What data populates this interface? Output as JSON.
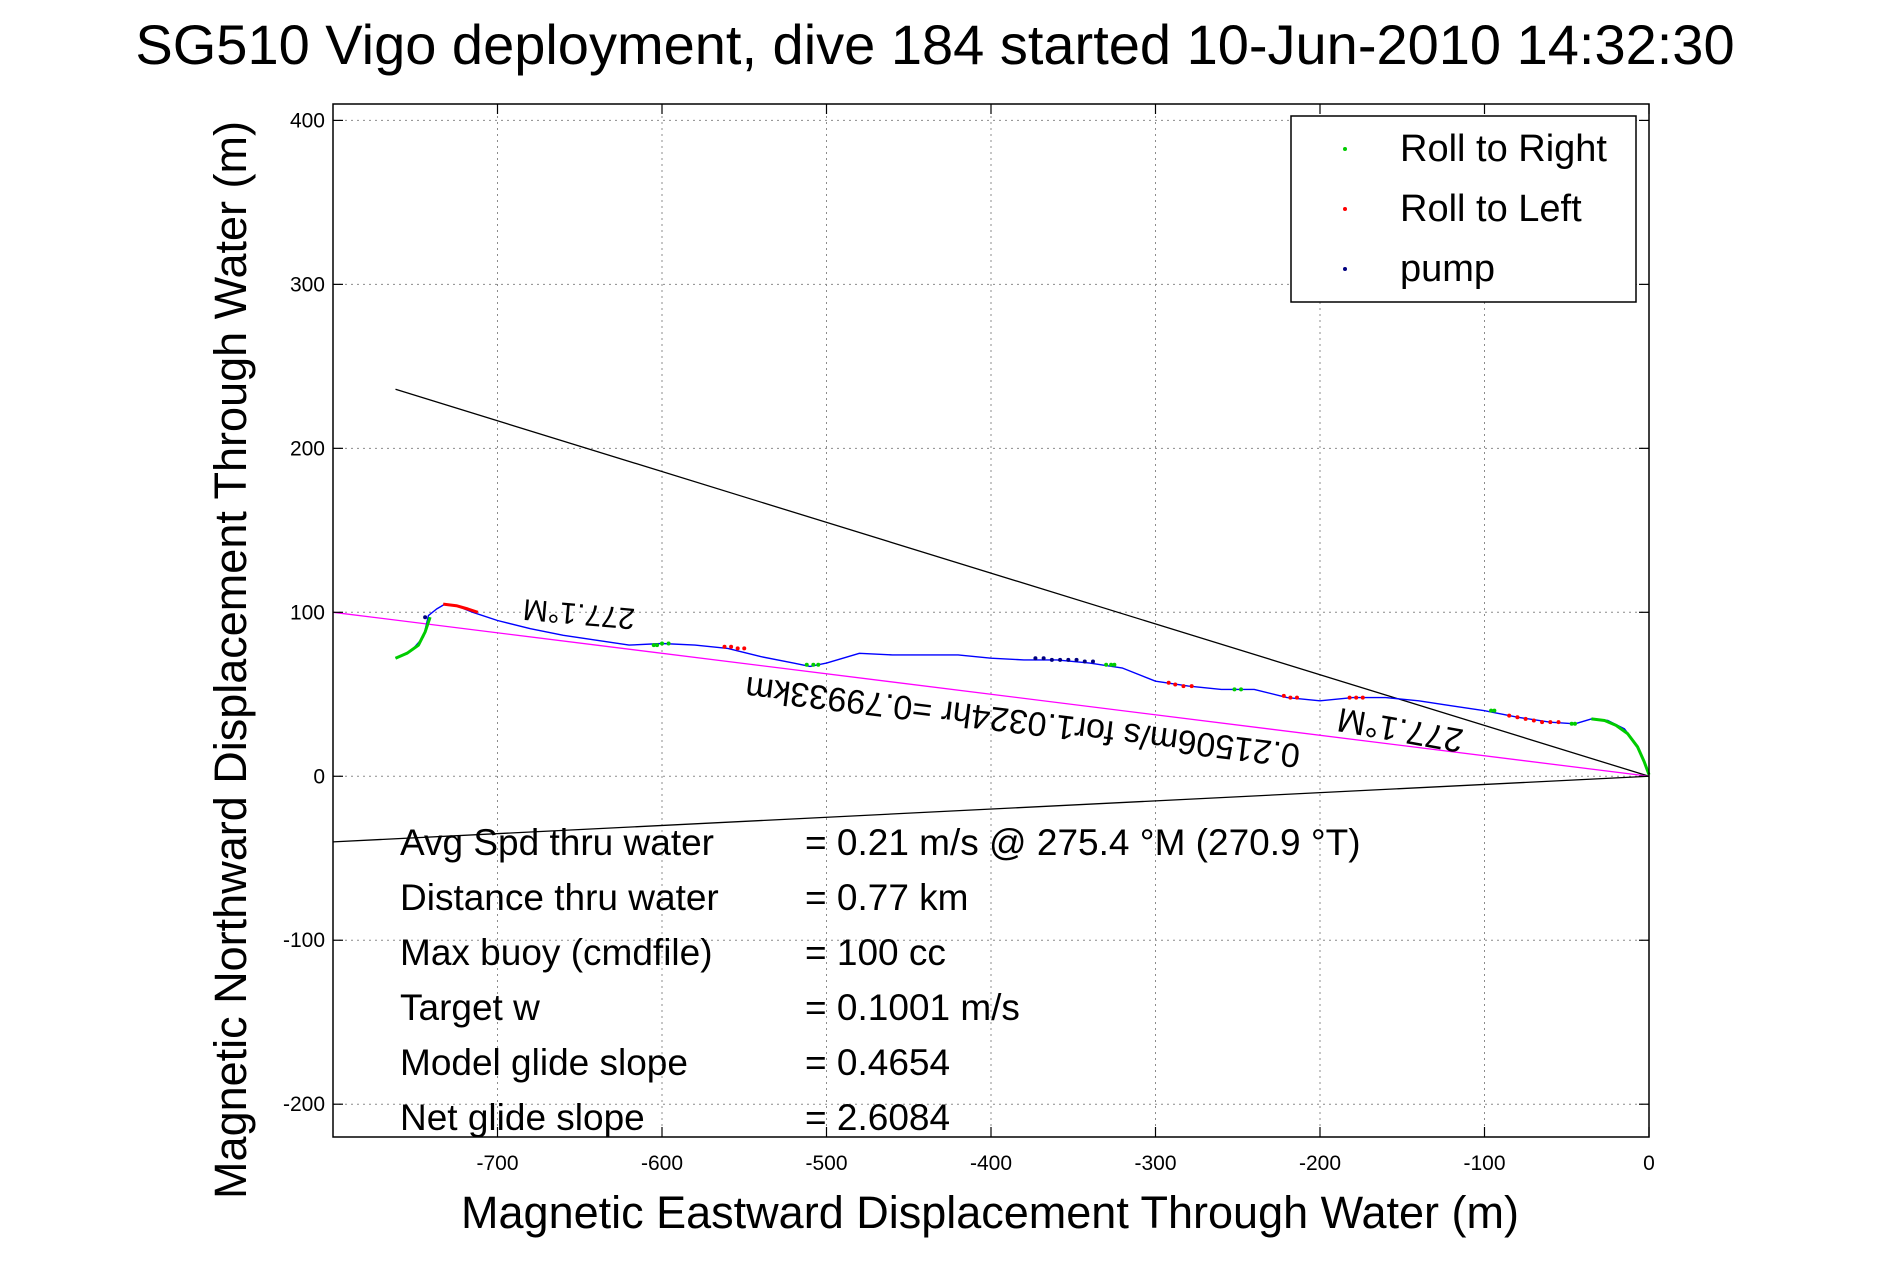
{
  "chart_data": {
    "type": "line",
    "title": "SG510 Vigo deployment, dive 184 started 10-Jun-2010 14:32:30",
    "xlabel": "Magnetic Eastward Displacement Through Water (m)",
    "ylabel": "Magnetic Northward Displacement Through Water (m)",
    "xlim": [
      -800,
      0
    ],
    "ylim": [
      -220,
      410
    ],
    "x_ticks": [
      -700,
      -600,
      -500,
      -400,
      -300,
      -200,
      -100,
      0
    ],
    "y_ticks": [
      -200,
      -100,
      0,
      100,
      200,
      300,
      400
    ],
    "grid": true,
    "legend": {
      "placement": "top-right",
      "entries": [
        {
          "label": "Roll to Right",
          "color": "#00cc00"
        },
        {
          "label": "Roll to Left",
          "color": "#ff0000"
        },
        {
          "label": "pump",
          "color": "#000080"
        }
      ]
    },
    "series": [
      {
        "color": "#0000ff",
        "x": [
          -762,
          -752,
          -745,
          -742,
          -737,
          -732,
          -725,
          -715,
          -700,
          -680,
          -660,
          -640,
          -620,
          -600,
          -580,
          -560,
          -540,
          -520,
          -510,
          -500,
          -490,
          -480,
          -460,
          -440,
          -420,
          -400,
          -380,
          -360,
          -340,
          -320,
          -300,
          -280,
          -260,
          -240,
          -220,
          -200,
          -180,
          -160,
          -140,
          -120,
          -100,
          -80,
          -60,
          -45,
          -35,
          -25,
          -15,
          -8,
          -3,
          0
        ],
        "y": [
          72,
          77,
          85,
          98,
          102,
          105,
          104,
          100,
          95,
          90,
          86,
          83,
          80,
          81,
          80,
          78,
          73,
          69,
          67,
          69,
          72,
          75,
          74,
          74,
          74,
          72,
          71,
          71,
          69,
          66,
          58,
          55,
          53,
          53,
          48,
          46,
          48,
          48,
          46,
          43,
          40,
          36,
          33,
          32,
          35,
          34,
          29,
          20,
          9,
          1
        ]
      },
      {
        "color": "#00cc00",
        "x": [
          -762,
          -755,
          -748,
          -744,
          -741
        ],
        "y": [
          72,
          75,
          80,
          88,
          97
        ]
      },
      {
        "color": "#00cc00",
        "x": [
          -35,
          -27,
          -20,
          -13,
          -7,
          -3,
          0
        ],
        "y": [
          35,
          34,
          31,
          26,
          18,
          9,
          1
        ]
      },
      {
        "color": "#ff0000",
        "x": [
          -733,
          -725,
          -718,
          -712
        ],
        "y": [
          105,
          104,
          102,
          100
        ]
      }
    ],
    "markers": [
      {
        "color": "#00cc00",
        "x": [
          -605,
          -603,
          -600,
          -596,
          -512,
          -508,
          -505,
          -330,
          -327,
          -325,
          -252,
          -248,
          -96,
          -94,
          -47,
          -45
        ],
        "y": [
          80,
          80,
          81,
          81,
          68,
          68,
          68,
          68,
          68,
          68,
          53,
          53,
          40,
          40,
          32,
          32
        ]
      },
      {
        "color": "#ff0000",
        "x": [
          -562,
          -558,
          -554,
          -550,
          -292,
          -288,
          -283,
          -278,
          -222,
          -218,
          -214,
          -182,
          -178,
          -174,
          -85,
          -80,
          -75,
          -70,
          -65,
          -60,
          -55
        ],
        "y": [
          79,
          79,
          78,
          78,
          57,
          56,
          55,
          55,
          49,
          48,
          48,
          48,
          48,
          48,
          37,
          36,
          35,
          34,
          33,
          33,
          33
        ]
      },
      {
        "color": "#000080",
        "x": [
          -744,
          -373,
          -368,
          -363,
          -358,
          -353,
          -348,
          -343,
          -338
        ],
        "y": [
          97,
          72,
          72,
          71,
          71,
          71,
          71,
          70,
          70
        ]
      }
    ],
    "reference_lines": [
      {
        "color": "#000000",
        "x": [
          -762,
          0
        ],
        "y": [
          236,
          0
        ]
      },
      {
        "color": "#000000",
        "x": [
          -800,
          0
        ],
        "y": [
          -40,
          0
        ]
      },
      {
        "color": "#ff00ff",
        "x": [
          -800,
          0
        ],
        "y": [
          100,
          0
        ]
      }
    ],
    "annotations": [
      {
        "text": "277.1°M",
        "x": -650,
        "y": 105,
        "rotation_deg": 185,
        "size": "medium"
      },
      {
        "text": "277.1°M",
        "x": -150,
        "y": 35,
        "rotation_deg": 190,
        "size": "large"
      },
      {
        "text": "0.21506m/s for1.0324hr =0.79933km",
        "x": -380,
        "y": 40,
        "rotation_deg": 187,
        "size": "large"
      }
    ],
    "stats": [
      {
        "label": "Avg Spd thru water",
        "value": "=  0.21 m/s @ 275.4 °M (270.9 °T)"
      },
      {
        "label": "Distance thru water",
        "value": "=  0.77 km"
      },
      {
        "label": "Max buoy (cmdfile)",
        "value": "= 100 cc"
      },
      {
        "label": "Target w",
        "value": "= 0.1001 m/s"
      },
      {
        "label": "Model glide slope",
        "value": "= 0.4654"
      },
      {
        "label": "Net glide slope",
        "value": "= 2.6084"
      }
    ]
  }
}
